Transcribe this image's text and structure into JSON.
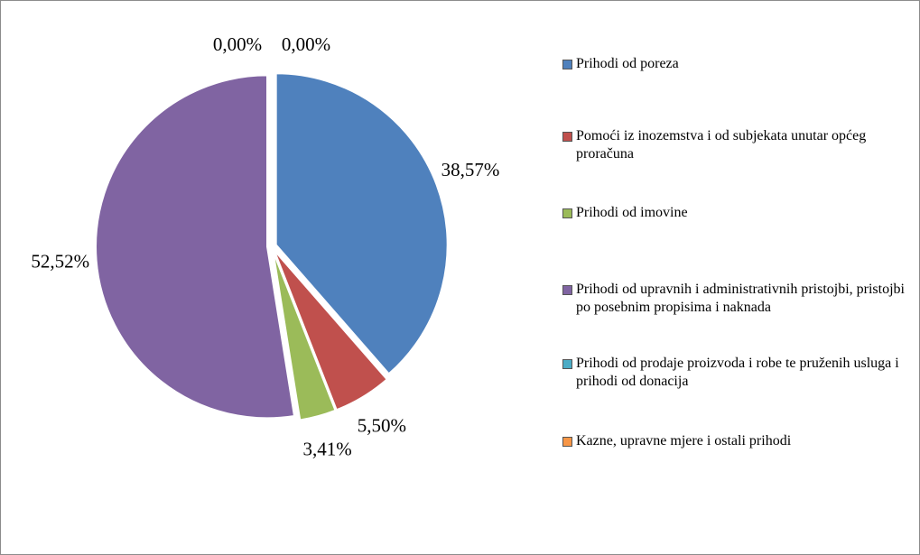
{
  "chart_data": {
    "type": "pie",
    "categories": [
      "Prihodi od poreza",
      "Pomoći iz inozemstva i od subjekata unutar općeg proračuna",
      "Prihodi od imovine",
      "Prihodi od upravnih i administrativnih pristojbi, pristojbi po posebnim propisima i naknada",
      "Prihodi od prodaje proizvoda i robe te pruženih usluga i prihodi od donacija",
      "Kazne, upravne mjere i ostali prihodi"
    ],
    "values": [
      38.57,
      5.5,
      3.41,
      52.52,
      0.0,
      0.0
    ],
    "value_labels": [
      "38,57%",
      "5,50%",
      "3,41%",
      "52,52%",
      "0,00%",
      "0,00%"
    ],
    "colors": [
      "#4f81bd",
      "#c0504d",
      "#9bbb59",
      "#8064a2",
      "#4bacc6",
      "#f79646"
    ],
    "legend": "right"
  }
}
